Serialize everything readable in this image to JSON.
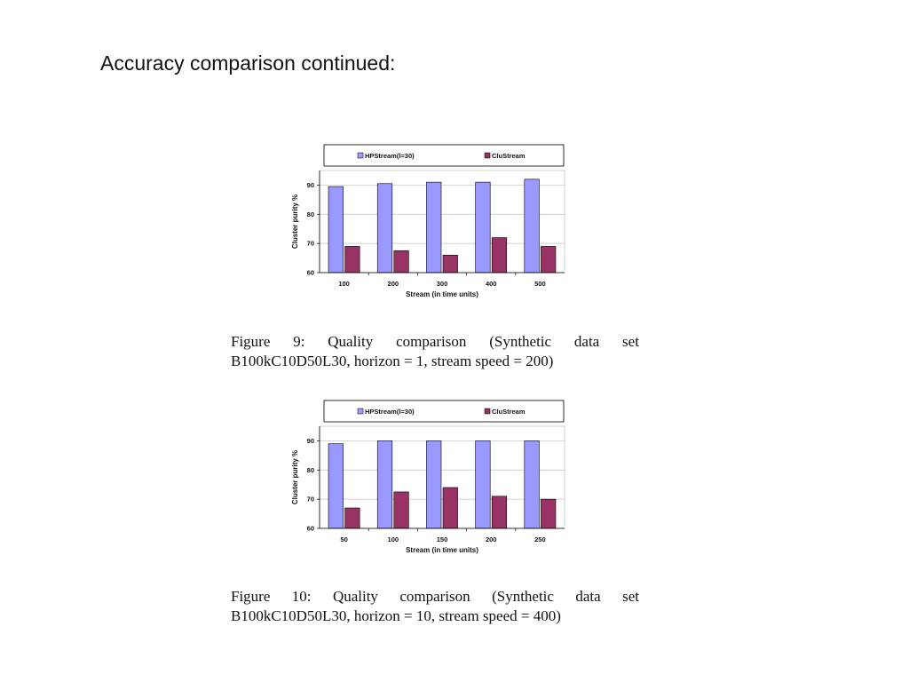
{
  "slide_title": "Accuracy comparison continued:",
  "colors": {
    "hpstream": "#9999ff",
    "clustream": "#993366"
  },
  "chart_data": [
    {
      "type": "bar",
      "categories": [
        "100",
        "200",
        "300",
        "400",
        "500"
      ],
      "series": [
        {
          "name": "HPStream(l=30)",
          "values": [
            89.5,
            90.5,
            91,
            91,
            92
          ]
        },
        {
          "name": "CluStream",
          "values": [
            69,
            67.5,
            66,
            72,
            69
          ]
        }
      ],
      "xlabel": "Stream (in time units)",
      "ylabel": "Cluster purity %",
      "ylim": [
        60,
        95
      ],
      "yticks": [
        60,
        70,
        80,
        90
      ],
      "grid": true,
      "legend": "top",
      "caption": {
        "line1": [
          "Figure",
          "9:",
          "Quality",
          "comparison",
          "(Synthetic",
          "data",
          "set"
        ],
        "line2": "B100kC10D50L30, horizon = 1, stream speed = 200)"
      }
    },
    {
      "type": "bar",
      "categories": [
        "50",
        "100",
        "150",
        "200",
        "250"
      ],
      "series": [
        {
          "name": "HPStream(l=30)",
          "values": [
            89,
            90,
            90,
            90,
            90
          ]
        },
        {
          "name": "CluStream",
          "values": [
            67,
            72.5,
            74,
            71,
            70
          ]
        }
      ],
      "xlabel": "Stream (in time units)",
      "ylabel": "Cluster purity %",
      "ylim": [
        60,
        95
      ],
      "yticks": [
        60,
        70,
        80,
        90
      ],
      "grid": true,
      "legend": "top",
      "caption": {
        "line1": [
          "Figure",
          "10:",
          "Quality",
          "comparison",
          "(Synthetic",
          "data",
          "set"
        ],
        "line2": "B100kC10D50L30, horizon = 10, stream speed = 400)"
      }
    }
  ]
}
